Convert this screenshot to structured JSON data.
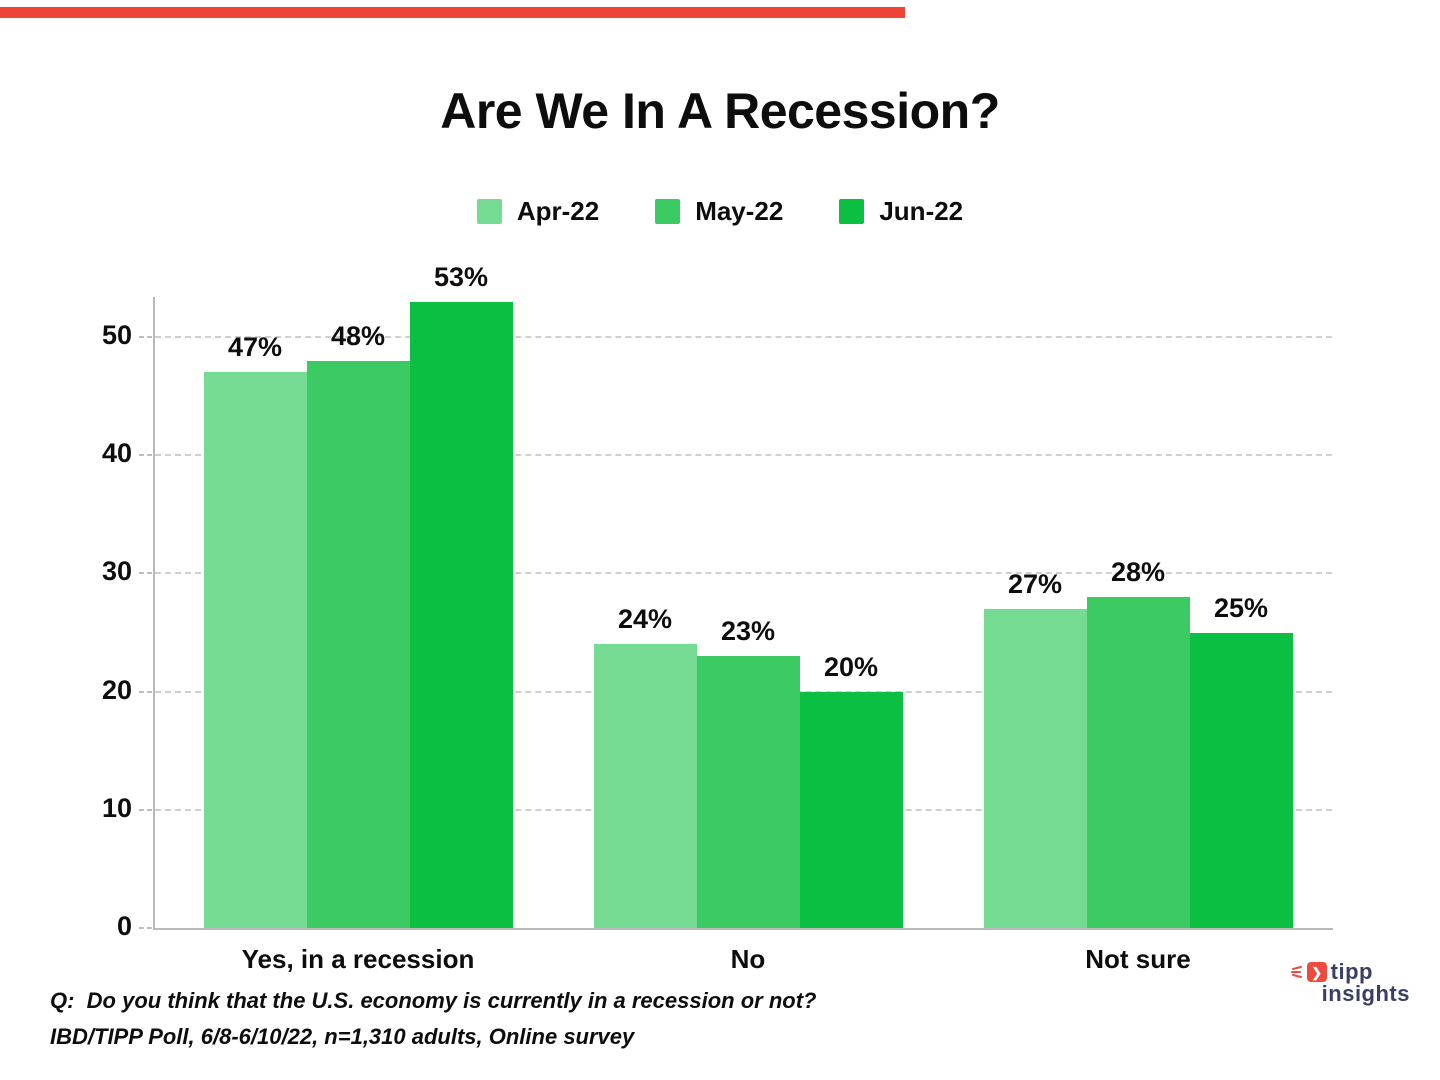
{
  "page": {
    "topbar_color": "#ee4438"
  },
  "chart_data": {
    "type": "bar",
    "title": "Are We In A Recession?",
    "categories": [
      "Yes, in a recession",
      "No",
      "Not sure"
    ],
    "series": [
      {
        "name": "Apr-22",
        "color": "#76db92",
        "values": [
          47,
          24,
          27
        ]
      },
      {
        "name": "May-22",
        "color": "#3ccb63",
        "values": [
          48,
          23,
          28
        ]
      },
      {
        "name": "Jun-22",
        "color": "#0abf42",
        "values": [
          53,
          20,
          25
        ]
      }
    ],
    "value_suffix": "%",
    "ylim": [
      0,
      55
    ],
    "yticks": [
      0,
      10,
      20,
      30,
      40,
      50
    ],
    "grid": "horizontal-dashed",
    "legend_position": "top-center"
  },
  "footer": {
    "question": "Q:  Do you think that the U.S. economy is currently in a recession or not?",
    "source": "IBD/TIPP Poll, 6/8-6/10/22, n=1,310 adults, Online survey"
  },
  "logo": {
    "line1": "tipp",
    "line2": "insights",
    "text_color": "#3b3f63",
    "icon_color": "#ee4b3e",
    "icon_glyph": "❯"
  }
}
